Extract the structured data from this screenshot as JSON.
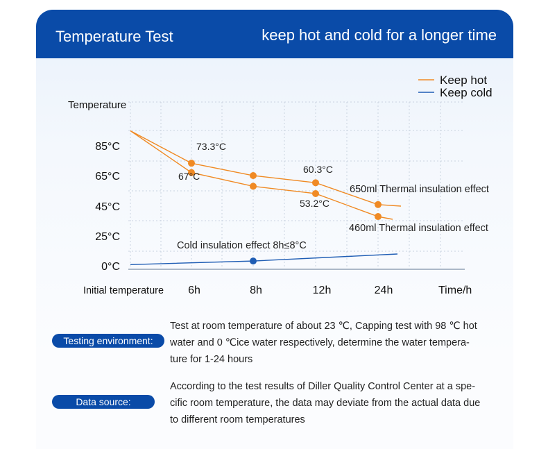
{
  "header": {
    "title": "Temperature Test",
    "tagline": "keep hot and cold for a longer time"
  },
  "chart_data": {
    "type": "line",
    "ylabel": "Temperature",
    "xlabel": "Time/h",
    "y_ticks": [
      "85°C",
      "65°C",
      "45°C",
      "25°C",
      "0°C"
    ],
    "x_ticks": [
      "Initial temperature",
      "6h",
      "8h",
      "12h",
      "24h"
    ],
    "grid": true,
    "legend_position": "top-right",
    "legend": [
      {
        "label": "Keep hot",
        "color": "#f08a24"
      },
      {
        "label": "Keep cold",
        "color": "#1f5db4"
      }
    ],
    "series": [
      {
        "name": "650ml Thermal insulation effect",
        "color": "#f08a24",
        "x": [
          "Initial temperature",
          "6h",
          "8h",
          "12h",
          "24h"
        ],
        "y": [
          95,
          73.3,
          65,
          60.3,
          46
        ]
      },
      {
        "name": "460ml Thermal insulation effect",
        "color": "#f08a24",
        "x": [
          "Initial temperature",
          "6h",
          "8h",
          "12h",
          "24h"
        ],
        "y": [
          95,
          67,
          58,
          53.2,
          38
        ]
      },
      {
        "name": "Cold insulation effect 8h≤8°C",
        "color": "#1f5db4",
        "x": [
          "Initial temperature",
          "8h"
        ],
        "y": [
          1,
          4
        ]
      }
    ],
    "point_labels": [
      "73.3°C",
      "67°C",
      "60.3°C",
      "53.2°C"
    ]
  },
  "info": {
    "environment_label": "Testing environment:",
    "environment_lines": [
      "Test at room temperature of about 23 ℃, Capping test with 98 ℃ hot",
      "water and 0 ℃ice water respectively, determine the water tempera-",
      "ture for 1-24 hours"
    ],
    "source_label": "Data source:",
    "source_lines": [
      "According to the test results of Diller Quality Control Center at a spe-",
      "cific room temperature, the data may deviate from the actual data due",
      "to different room temperatures"
    ]
  }
}
